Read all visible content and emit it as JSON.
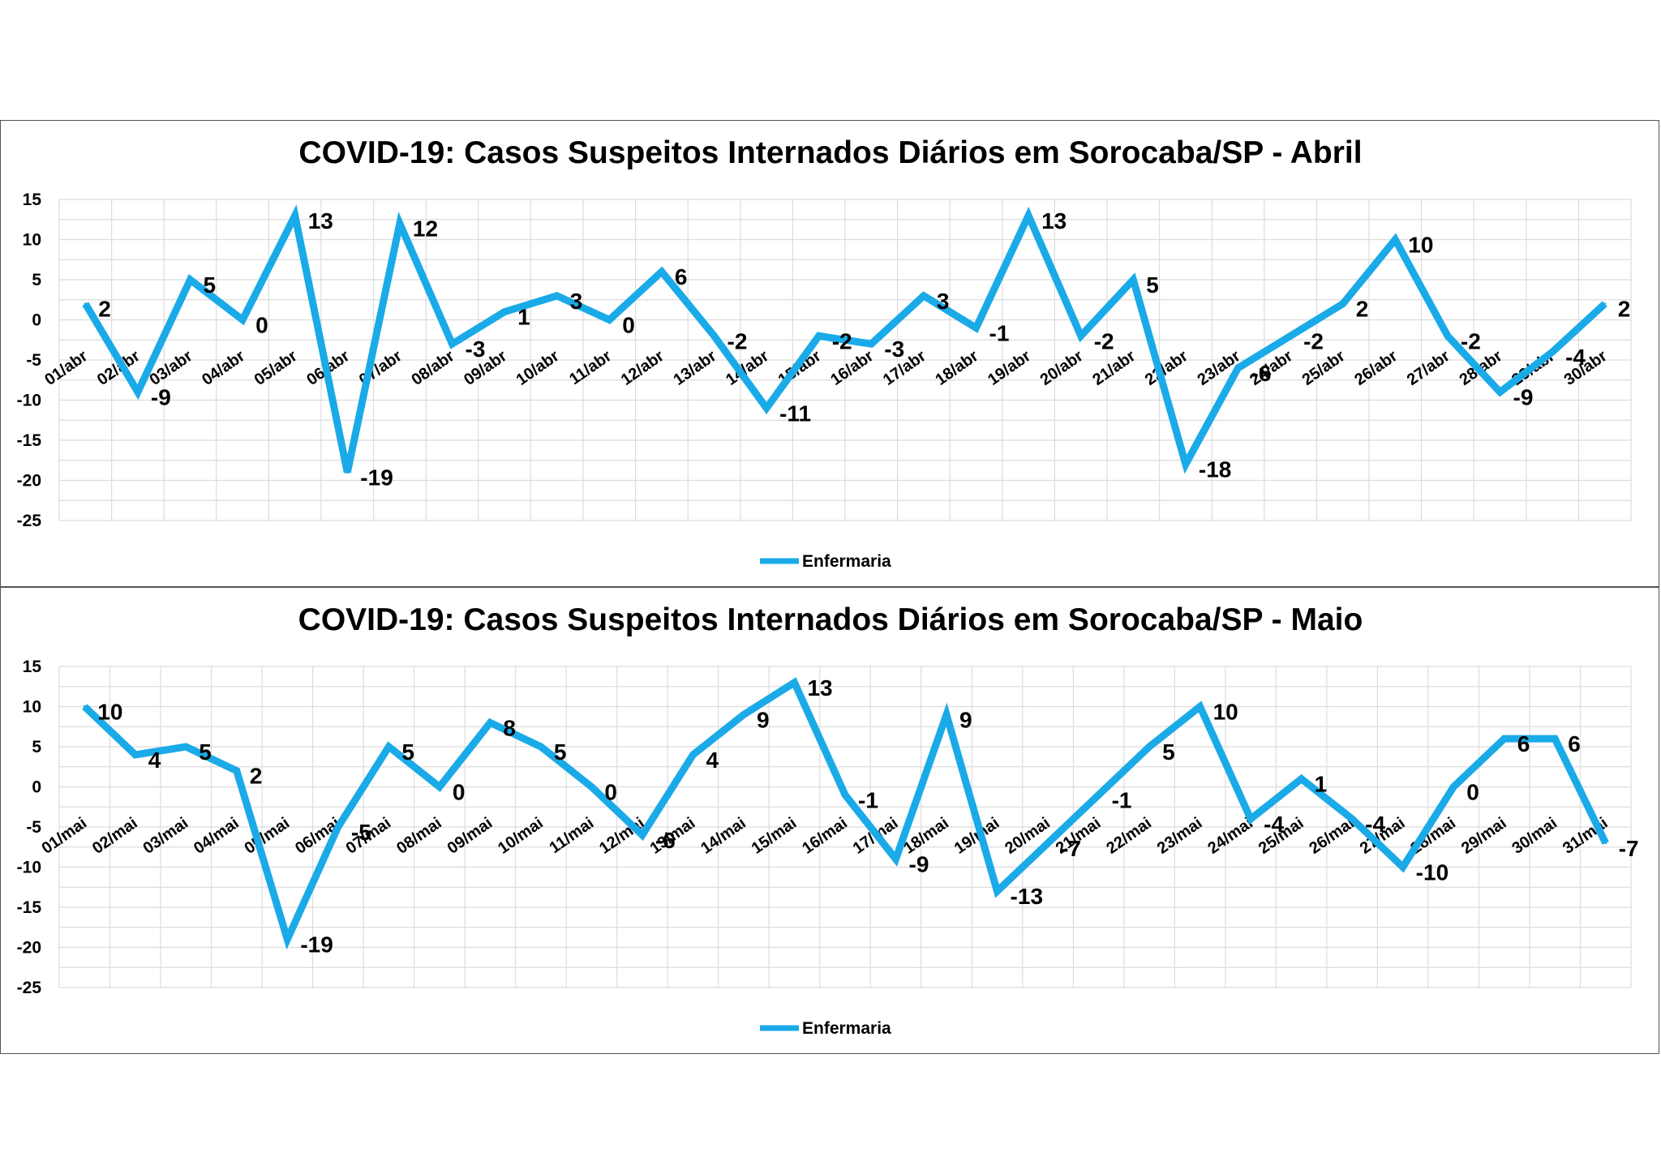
{
  "line_color": "#1AAAE8",
  "chart_data": [
    {
      "type": "line",
      "title": "COVID-19: Casos Suspeitos Internados Diários em Sorocaba/SP - Abril",
      "ylim": [
        -25,
        15
      ],
      "yticks": [
        "15",
        "10",
        "5",
        "0",
        "-5",
        "-10",
        "-15",
        "-20",
        "-25"
      ],
      "categories": [
        "01/abr",
        "02/abr",
        "03/abr",
        "04/abr",
        "05/abr",
        "06/abr",
        "07/abr",
        "08/abr",
        "09/abr",
        "10/abr",
        "11/abr",
        "12/abr",
        "13/abr",
        "14/abr",
        "15/abr",
        "16/abr",
        "17/abr",
        "18/abr",
        "19/abr",
        "20/abr",
        "21/abr",
        "22/abr",
        "23/abr",
        "24/abr",
        "25/abr",
        "26/abr",
        "27/abr",
        "28/abr",
        "29/abr",
        "30/abr"
      ],
      "series": [
        {
          "name": "Enfermaria",
          "values": [
            2,
            -9,
            5,
            0,
            13,
            -19,
            12,
            -3,
            1,
            3,
            0,
            6,
            -2,
            -11,
            -2,
            -3,
            3,
            -1,
            13,
            -2,
            5,
            -18,
            -6,
            -2,
            2,
            10,
            -2,
            -9,
            -4,
            2
          ],
          "labels": [
            "2",
            "-9",
            "5",
            "0",
            "13",
            "-19",
            "12",
            "-3",
            "1",
            "3",
            "0",
            "6",
            "-2",
            "-11",
            "-2",
            "-3",
            "3",
            "-1",
            "13",
            "-2",
            "5",
            "-18",
            "-6",
            "-2",
            "2",
            "10",
            "-2",
            "-9",
            "-4",
            "2"
          ]
        }
      ],
      "legend": "Enfermaria",
      "legend_position": "bottom",
      "grid": true
    },
    {
      "type": "line",
      "title": "COVID-19: Casos Suspeitos Internados Diários em Sorocaba/SP - Maio",
      "ylim": [
        -25,
        15
      ],
      "yticks": [
        "15",
        "10",
        "5",
        "0",
        "-5",
        "-10",
        "-15",
        "-20",
        "-25"
      ],
      "categories": [
        "01/mai",
        "02/mai",
        "03/mai",
        "04/mai",
        "05/mai",
        "06/mai",
        "07/mai",
        "08/mai",
        "09/mai",
        "10/mai",
        "11/mai",
        "12/mai",
        "13/mai",
        "14/mai",
        "15/mai",
        "16/mai",
        "17/mai",
        "18/mai",
        "19/mai",
        "20/mai",
        "21/mai",
        "22/mai",
        "23/mai",
        "24/mai",
        "25/mai",
        "26/mai",
        "27/mai",
        "28/mai",
        "29/mai",
        "30/mai",
        "31/mai"
      ],
      "series": [
        {
          "name": "Enfermaria",
          "values": [
            10,
            4,
            5,
            2,
            -19,
            -5,
            5,
            0,
            8,
            5,
            0,
            -6,
            4,
            9,
            13,
            -1,
            -9,
            9,
            -13,
            -7,
            -1,
            5,
            10,
            -4,
            1,
            -4,
            -10,
            0,
            6,
            6,
            -7
          ],
          "labels": [
            "10",
            "4",
            "5",
            "2",
            "-19",
            "-5",
            "5",
            "0",
            "8",
            "5",
            "0",
            "-6",
            "4",
            "9",
            "13",
            "-1",
            "-9",
            "9",
            "-13",
            "-7",
            "-1",
            "5",
            "10",
            "-4",
            "1",
            "-4",
            "-10",
            "0",
            "6",
            "6",
            "-7"
          ]
        }
      ],
      "legend": "Enfermaria",
      "legend_position": "bottom",
      "grid": true
    }
  ]
}
